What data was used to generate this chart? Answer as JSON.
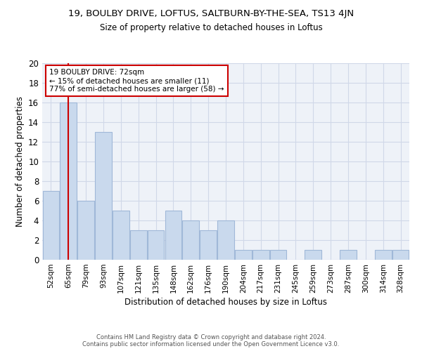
{
  "title": "19, BOULBY DRIVE, LOFTUS, SALTBURN-BY-THE-SEA, TS13 4JN",
  "subtitle": "Size of property relative to detached houses in Loftus",
  "xlabel": "Distribution of detached houses by size in Loftus",
  "ylabel": "Number of detached properties",
  "bins": [
    "52sqm",
    "65sqm",
    "79sqm",
    "93sqm",
    "107sqm",
    "121sqm",
    "135sqm",
    "148sqm",
    "162sqm",
    "176sqm",
    "190sqm",
    "204sqm",
    "217sqm",
    "231sqm",
    "245sqm",
    "259sqm",
    "273sqm",
    "287sqm",
    "300sqm",
    "314sqm",
    "328sqm"
  ],
  "values": [
    7,
    16,
    6,
    13,
    5,
    3,
    3,
    5,
    4,
    3,
    4,
    1,
    1,
    1,
    0,
    1,
    0,
    1,
    0,
    1,
    1
  ],
  "bar_color": "#c9d9ed",
  "bar_edge_color": "#a0b8d8",
  "vline_x_index": 1,
  "vline_color": "#cc0000",
  "annotation_line1": "19 BOULBY DRIVE: 72sqm",
  "annotation_line2": "← 15% of detached houses are smaller (11)",
  "annotation_line3": "77% of semi-detached houses are larger (58) →",
  "annotation_box_color": "#cc0000",
  "ylim": [
    0,
    20
  ],
  "yticks": [
    0,
    2,
    4,
    6,
    8,
    10,
    12,
    14,
    16,
    18,
    20
  ],
  "grid_color": "#d0d8e8",
  "background_color": "#eef2f8",
  "footnote1": "Contains HM Land Registry data © Crown copyright and database right 2024.",
  "footnote2": "Contains public sector information licensed under the Open Government Licence v3.0."
}
